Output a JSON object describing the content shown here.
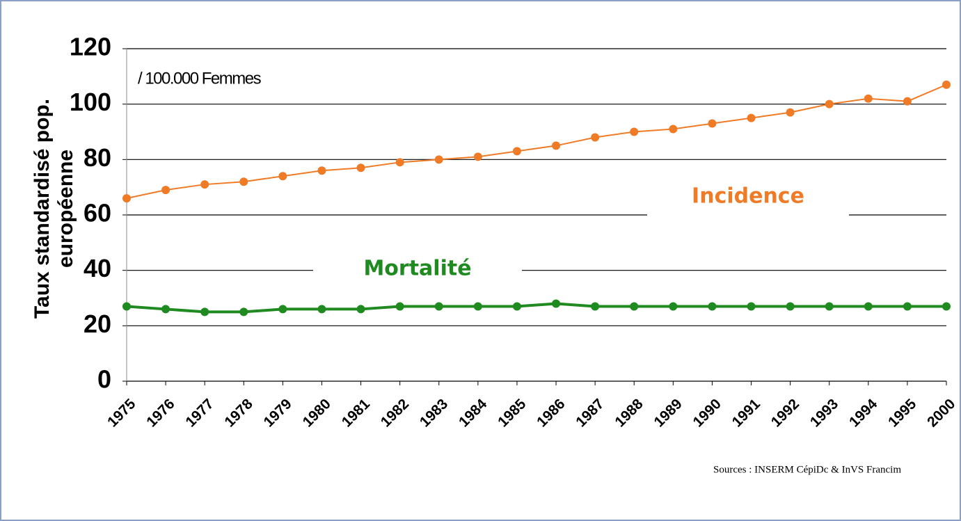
{
  "chart_data": {
    "type": "line",
    "ylabel": [
      "Taux standardisé pop.",
      "européenne"
    ],
    "unit_note": "/ 100.000 Femmes",
    "source": "Sources : INSERM CépiDc & InVS Francim",
    "categories": [
      "1975",
      "1976",
      "1977",
      "1978",
      "1979",
      "1980",
      "1981",
      "1982",
      "1983",
      "1984",
      "1985",
      "1986",
      "1987",
      "1988",
      "1989",
      "1990",
      "1991",
      "1992",
      "1993",
      "1994",
      "1995",
      "2000"
    ],
    "series": [
      {
        "name": "Incidence",
        "color": "#f07b26",
        "values": [
          66,
          69,
          71,
          72,
          74,
          76,
          77,
          79,
          80,
          81,
          83,
          85,
          88,
          90,
          91,
          93,
          95,
          97,
          100,
          102,
          101,
          107
        ]
      },
      {
        "name": "Mortalité",
        "color": "#1f8a1f",
        "values": [
          27,
          26,
          25,
          25,
          26,
          26,
          26,
          27,
          27,
          27,
          27,
          28,
          27,
          27,
          27,
          27,
          27,
          27,
          27,
          27,
          27,
          27
        ]
      }
    ],
    "ylim": [
      0,
      120
    ],
    "yticks": [
      0,
      20,
      40,
      60,
      80,
      100,
      120
    ],
    "grid": true
  }
}
